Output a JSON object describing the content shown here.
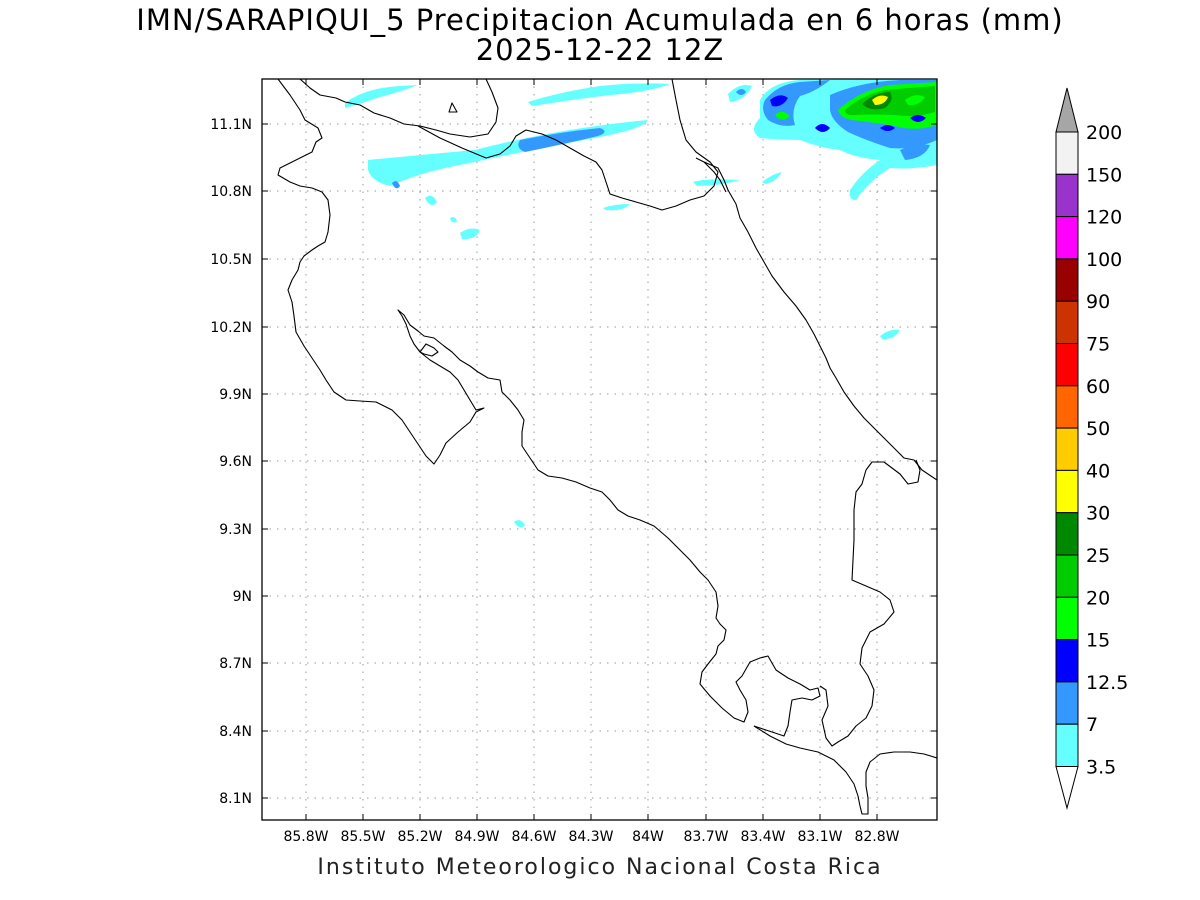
{
  "header": {
    "title": "IMN/SARAPIQUI_5 Precipitacion Acumulada en 6 horas (mm)",
    "subtitle": "2025-12-22 12Z"
  },
  "map": {
    "lat_labels": [
      "11.1N",
      "10.8N",
      "10.5N",
      "10.2N",
      "9.9N",
      "9.6N",
      "9.3N",
      "9N",
      "8.7N",
      "8.4N",
      "8.1N"
    ],
    "lon_labels": [
      "85.8W",
      "85.5W",
      "85.2W",
      "84.9W",
      "84.6W",
      "84.3W",
      "84W",
      "83.7W",
      "83.4W",
      "83.1W",
      "82.8W"
    ],
    "grid": true,
    "coastline_color": "#000000",
    "grid_color": "#999999"
  },
  "colorbar": {
    "levels": [
      "200",
      "150",
      "120",
      "100",
      "90",
      "75",
      "60",
      "50",
      "40",
      "30",
      "25",
      "20",
      "15",
      "12.5",
      "7",
      "3.5"
    ],
    "colors": [
      "#a6a6a6",
      "#f2f2f2",
      "#9933cc",
      "#ff00ff",
      "#990000",
      "#cc3300",
      "#ff0000",
      "#ff6600",
      "#ffcc00",
      "#ffff00",
      "#008800",
      "#00cc00",
      "#00ff00",
      "#0000ff",
      "#3399ff",
      "#66ffff",
      "#ffffff"
    ]
  },
  "footer": {
    "credit": "Instituto Meteorologico Nacional Costa Rica"
  }
}
